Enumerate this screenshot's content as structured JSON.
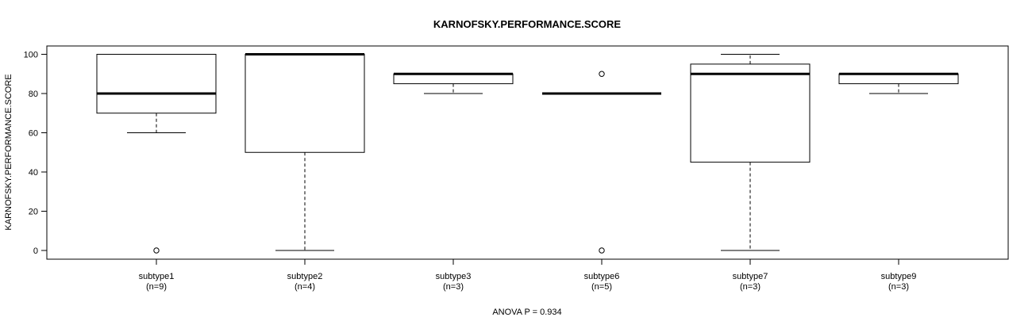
{
  "chart_data": {
    "type": "boxplot",
    "title": "KARNOFSKY.PERFORMANCE.SCORE",
    "ylabel": "KARNOFSKY.PERFORMANCE.SCORE",
    "xlabel": "ANOVA P = 0.934",
    "ylim": [
      0,
      100
    ],
    "yticks": [
      "0",
      "20",
      "40",
      "60",
      "80",
      "100"
    ],
    "groups": [
      {
        "name": "subtype1",
        "n_label": "(n=9)",
        "whisker_low": 60,
        "q1": 70,
        "median": 80,
        "q3": 100,
        "whisker_high": 100,
        "outliers": [
          0
        ]
      },
      {
        "name": "subtype2",
        "n_label": "(n=4)",
        "whisker_low": 0,
        "q1": 50,
        "median": 100,
        "q3": 100,
        "whisker_high": 100,
        "outliers": []
      },
      {
        "name": "subtype3",
        "n_label": "(n=3)",
        "whisker_low": 80,
        "q1": 85,
        "median": 90,
        "q3": 90,
        "whisker_high": 90,
        "outliers": []
      },
      {
        "name": "subtype6",
        "n_label": "(n=5)",
        "whisker_low": 80,
        "q1": 80,
        "median": 80,
        "q3": 80,
        "whisker_high": 80,
        "outliers": [
          90,
          0
        ]
      },
      {
        "name": "subtype7",
        "n_label": "(n=3)",
        "whisker_low": 0,
        "q1": 45,
        "median": 90,
        "q3": 95,
        "whisker_high": 100,
        "outliers": []
      },
      {
        "name": "subtype9",
        "n_label": "(n=3)",
        "whisker_low": 80,
        "q1": 85,
        "median": 90,
        "q3": 90,
        "whisker_high": 90,
        "outliers": []
      }
    ]
  }
}
